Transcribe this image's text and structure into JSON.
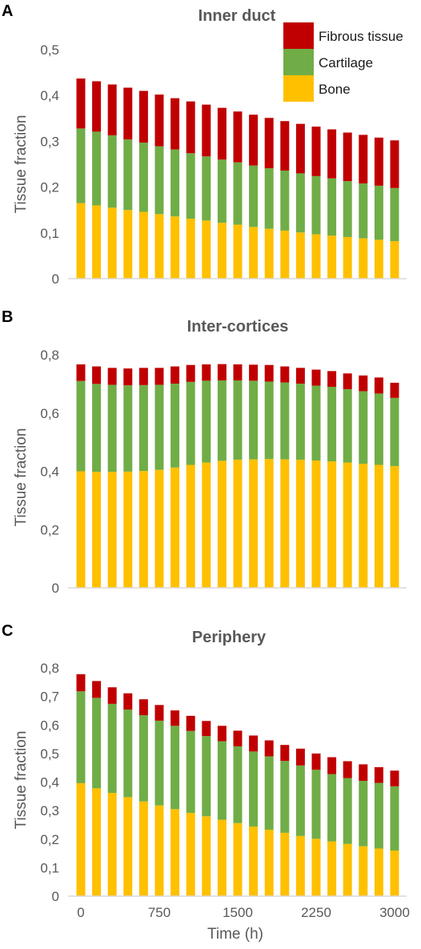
{
  "series_colors": {
    "fibrous": "#c00000",
    "cartilage": "#70ad47",
    "bone": "#ffc000"
  },
  "legend": [
    {
      "key": "fibrous",
      "label": "Fibrous tissue"
    },
    {
      "key": "cartilage",
      "label": "Cartilage"
    },
    {
      "key": "bone",
      "label": "Bone"
    }
  ],
  "chart_data": [
    {
      "type": "bar",
      "stacked": true,
      "panel_letter": "A",
      "title": "Inner duct",
      "ylabel": "Tissue fraction",
      "xlabel": "",
      "ylim": [
        0,
        0.5
      ],
      "yticks": [
        0,
        0.1,
        0.2,
        0.3,
        0.4,
        0.5
      ],
      "ytick_labels": [
        "0",
        "0,1",
        "0,2",
        "0,3",
        "0,4",
        "0,5"
      ],
      "xtick_labels": [],
      "gridlines": false,
      "legend_position": "top-right",
      "x": [
        0,
        150,
        300,
        450,
        600,
        750,
        900,
        1050,
        1200,
        1350,
        1500,
        1650,
        1800,
        1950,
        2100,
        2250,
        2400,
        2550,
        2700,
        2850,
        3000
      ],
      "series": [
        {
          "name": "Bone",
          "values": [
            0.165,
            0.16,
            0.155,
            0.15,
            0.146,
            0.141,
            0.136,
            0.131,
            0.127,
            0.122,
            0.118,
            0.113,
            0.109,
            0.105,
            0.101,
            0.097,
            0.094,
            0.091,
            0.088,
            0.085,
            0.082
          ]
        },
        {
          "name": "Cartilage",
          "values": [
            0.163,
            0.161,
            0.158,
            0.154,
            0.151,
            0.148,
            0.146,
            0.143,
            0.14,
            0.138,
            0.136,
            0.134,
            0.132,
            0.131,
            0.129,
            0.127,
            0.125,
            0.122,
            0.12,
            0.118,
            0.116
          ]
        },
        {
          "name": "Fibrous tissue",
          "values": [
            0.109,
            0.11,
            0.111,
            0.113,
            0.113,
            0.113,
            0.112,
            0.113,
            0.113,
            0.113,
            0.111,
            0.111,
            0.11,
            0.108,
            0.108,
            0.108,
            0.107,
            0.106,
            0.106,
            0.105,
            0.104
          ]
        }
      ]
    },
    {
      "type": "bar",
      "stacked": true,
      "panel_letter": "B",
      "title": "Inter-cortices",
      "ylabel": "Tissue fraction",
      "xlabel": "",
      "ylim": [
        0,
        0.8
      ],
      "yticks": [
        0,
        0.2,
        0.4,
        0.6,
        0.8
      ],
      "ytick_labels": [
        "0",
        "0,2",
        "0,4",
        "0,6",
        "0,8"
      ],
      "xtick_labels": [],
      "gridlines": false,
      "x": [
        0,
        150,
        300,
        450,
        600,
        750,
        900,
        1050,
        1200,
        1350,
        1500,
        1650,
        1800,
        1950,
        2100,
        2250,
        2400,
        2550,
        2700,
        2850,
        3000
      ],
      "series": [
        {
          "name": "Bone",
          "values": [
            0.4,
            0.398,
            0.398,
            0.399,
            0.401,
            0.405,
            0.413,
            0.422,
            0.43,
            0.436,
            0.44,
            0.441,
            0.442,
            0.441,
            0.44,
            0.437,
            0.434,
            0.43,
            0.426,
            0.422,
            0.418
          ]
        },
        {
          "name": "Cartilage",
          "values": [
            0.31,
            0.302,
            0.299,
            0.296,
            0.295,
            0.292,
            0.288,
            0.285,
            0.281,
            0.276,
            0.272,
            0.27,
            0.266,
            0.264,
            0.261,
            0.257,
            0.256,
            0.252,
            0.249,
            0.245,
            0.234
          ]
        },
        {
          "name": "Fibrous tissue",
          "values": [
            0.057,
            0.06,
            0.058,
            0.058,
            0.059,
            0.058,
            0.059,
            0.058,
            0.056,
            0.056,
            0.055,
            0.055,
            0.057,
            0.055,
            0.054,
            0.055,
            0.054,
            0.054,
            0.054,
            0.055,
            0.052
          ]
        }
      ]
    },
    {
      "type": "bar",
      "stacked": true,
      "panel_letter": "C",
      "title": "Periphery",
      "ylabel": "Tissue fraction",
      "xlabel": "Time (h)",
      "ylim": [
        0,
        0.8
      ],
      "yticks": [
        0,
        0.1,
        0.2,
        0.3,
        0.4,
        0.5,
        0.6,
        0.7,
        0.8
      ],
      "ytick_labels": [
        "0",
        "0,1",
        "0,2",
        "0,3",
        "0,4",
        "0,5",
        "0,6",
        "0,7",
        "0,8"
      ],
      "xtick_values": [
        0,
        750,
        1500,
        2250,
        3000
      ],
      "xtick_labels": [
        "0",
        "750",
        "1500",
        "2250",
        "3000"
      ],
      "gridlines": false,
      "x": [
        0,
        150,
        300,
        450,
        600,
        750,
        900,
        1050,
        1200,
        1350,
        1500,
        1650,
        1800,
        1950,
        2100,
        2250,
        2400,
        2550,
        2700,
        2850,
        3000
      ],
      "series": [
        {
          "name": "Bone",
          "values": [
            0.396,
            0.378,
            0.362,
            0.347,
            0.332,
            0.318,
            0.305,
            0.292,
            0.28,
            0.268,
            0.256,
            0.244,
            0.233,
            0.222,
            0.211,
            0.201,
            0.192,
            0.183,
            0.175,
            0.167,
            0.16
          ]
        },
        {
          "name": "Cartilage",
          "values": [
            0.322,
            0.317,
            0.312,
            0.307,
            0.302,
            0.297,
            0.292,
            0.287,
            0.281,
            0.275,
            0.269,
            0.263,
            0.257,
            0.252,
            0.247,
            0.242,
            0.236,
            0.231,
            0.229,
            0.23,
            0.225
          ]
        },
        {
          "name": "Fibrous tissue",
          "values": [
            0.06,
            0.059,
            0.058,
            0.057,
            0.056,
            0.055,
            0.054,
            0.053,
            0.053,
            0.054,
            0.055,
            0.056,
            0.056,
            0.056,
            0.059,
            0.057,
            0.059,
            0.059,
            0.058,
            0.055,
            0.055
          ]
        }
      ]
    }
  ]
}
